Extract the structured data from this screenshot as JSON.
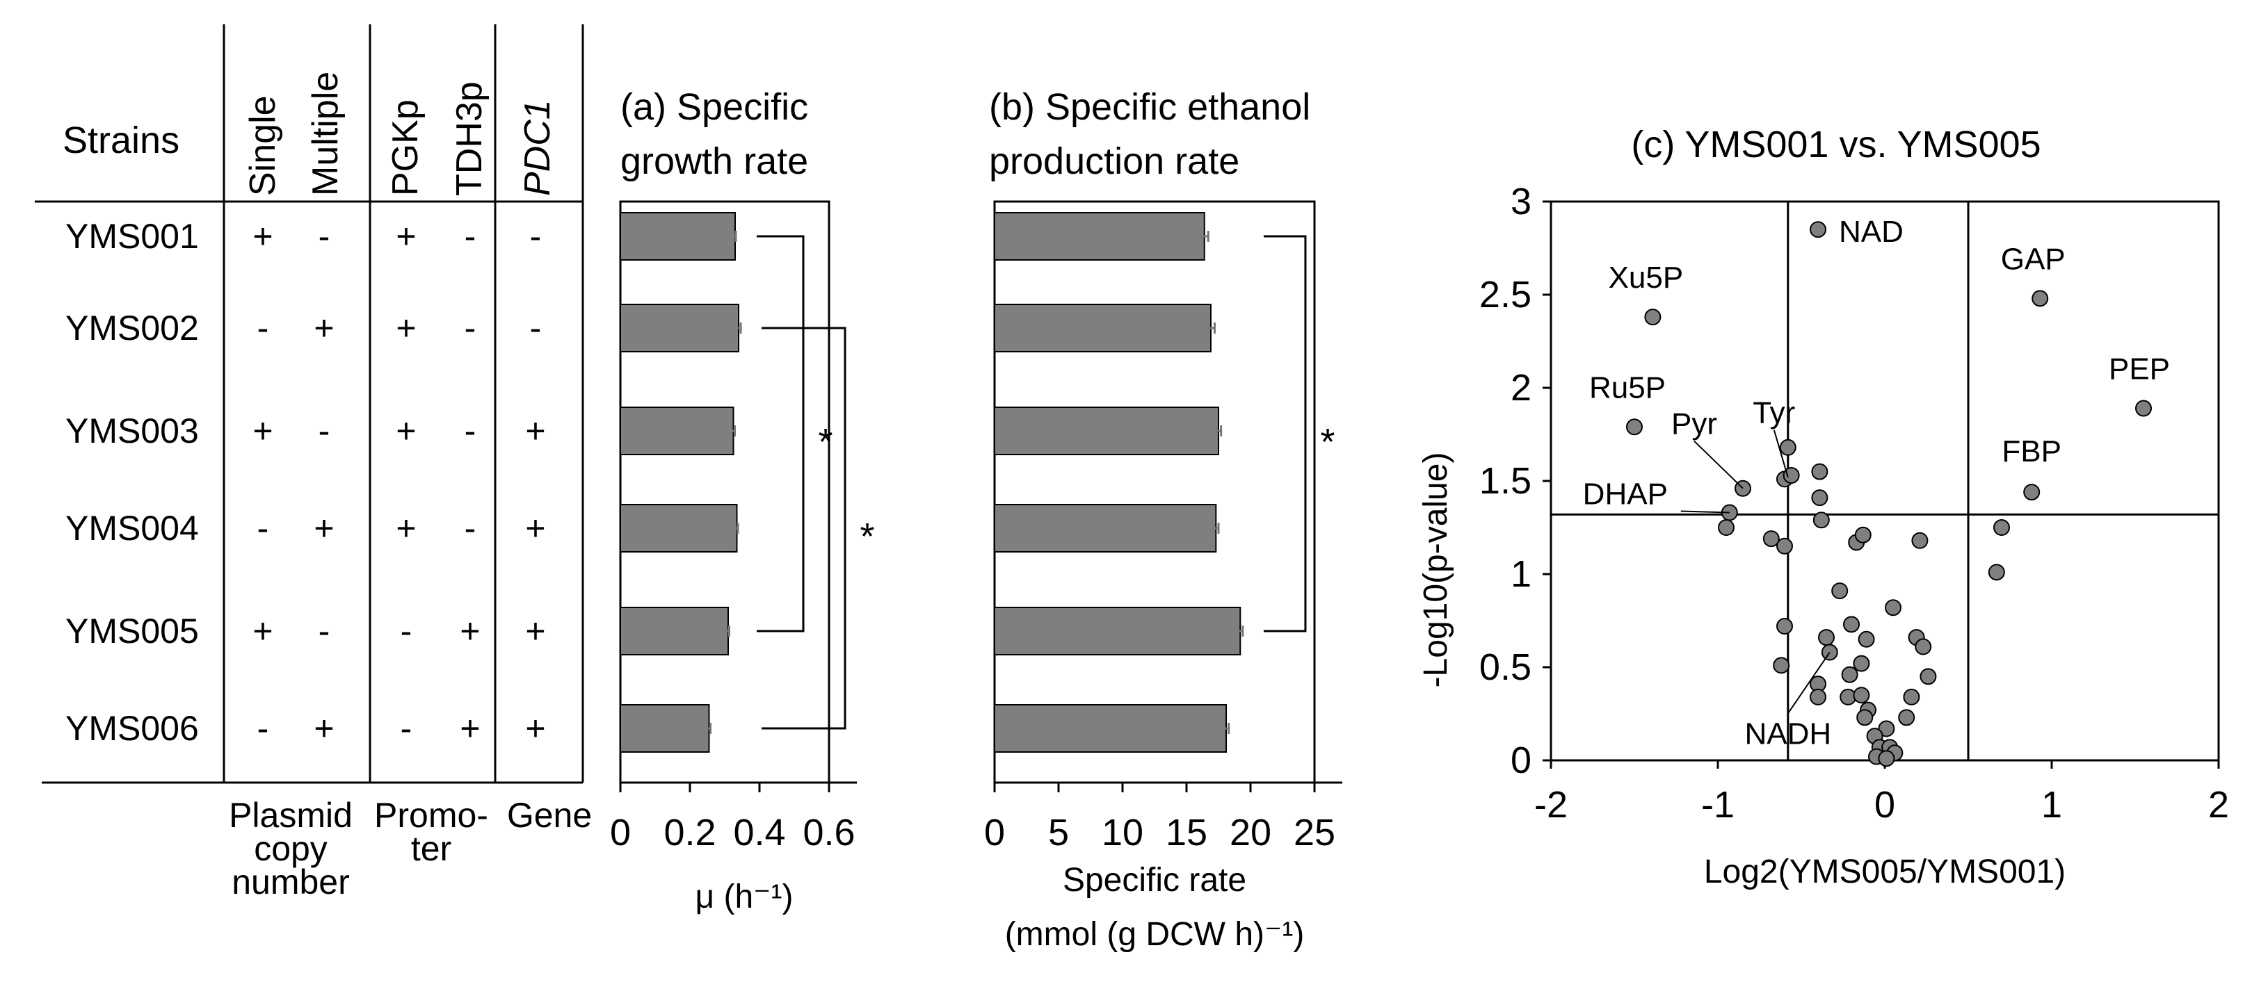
{
  "table": {
    "header": "Strains",
    "col_headers": [
      "Single",
      "Multiple",
      "PGKp",
      "TDH3p",
      "PDC1"
    ],
    "rows": [
      {
        "strain": "YMS001",
        "marks": [
          "+",
          "-",
          "+",
          "-",
          "-"
        ]
      },
      {
        "strain": "YMS002",
        "marks": [
          "-",
          "+",
          "+",
          "-",
          "-"
        ]
      },
      {
        "strain": "YMS003",
        "marks": [
          "+",
          "-",
          "+",
          "-",
          "+"
        ]
      },
      {
        "strain": "YMS004",
        "marks": [
          "-",
          "+",
          "+",
          "-",
          "+"
        ]
      },
      {
        "strain": "YMS005",
        "marks": [
          "+",
          "-",
          "-",
          "+",
          "+"
        ]
      },
      {
        "strain": "YMS006",
        "marks": [
          "-",
          "+",
          "-",
          "+",
          "+"
        ]
      }
    ],
    "groups": {
      "plasmid": [
        "Plasmid",
        "copy",
        "number"
      ],
      "promoter": [
        "Promo-",
        "ter"
      ],
      "gene": "Gene"
    }
  },
  "chart_data": [
    {
      "type": "bar",
      "orientation": "horizontal",
      "title_lines": [
        "(a) Specific",
        "growth rate"
      ],
      "categories": [
        "YMS001",
        "YMS002",
        "YMS003",
        "YMS004",
        "YMS005",
        "YMS006"
      ],
      "values": [
        0.33,
        0.34,
        0.325,
        0.335,
        0.31,
        0.255
      ],
      "errors": [
        0.002,
        0.006,
        0.004,
        0.003,
        0.003,
        0.004
      ],
      "xlim": [
        0,
        0.6
      ],
      "xticks": [
        "0",
        "0.2",
        "0.4",
        "0.6"
      ],
      "xlabel": "μ  (h⁻¹)",
      "significance": [
        {
          "from": "YMS001",
          "to": "YMS005",
          "label": "*"
        },
        {
          "from": "YMS002",
          "to": "YMS006",
          "label": "*"
        }
      ],
      "bar_color": "#7f7f7f"
    },
    {
      "type": "bar",
      "orientation": "horizontal",
      "title_lines": [
        "(b) Specific ethanol",
        "production rate"
      ],
      "categories": [
        "YMS001",
        "YMS002",
        "YMS003",
        "YMS004",
        "YMS005",
        "YMS006"
      ],
      "values": [
        16.4,
        16.9,
        17.5,
        17.3,
        19.2,
        18.1
      ],
      "errors": [
        0.3,
        0.3,
        0.2,
        0.2,
        0.2,
        0.2
      ],
      "xlim": [
        0,
        25
      ],
      "xticks": [
        "0",
        "5",
        "10",
        "15",
        "20",
        "25"
      ],
      "xlabel_lines": [
        "Specific rate",
        "(mmol (g DCW h)⁻¹)"
      ],
      "significance": [
        {
          "from": "YMS001",
          "to": "YMS005",
          "label": "*"
        }
      ],
      "bar_color": "#7f7f7f"
    },
    {
      "type": "scatter",
      "title": "(c) YMS001 vs. YMS005",
      "xlabel": "Log2(YMS005/YMS001)",
      "ylabel": "-Log10(p-value)",
      "xlim": [
        -2,
        2
      ],
      "ylim": [
        0,
        3
      ],
      "xticks": [
        "-2",
        "-1",
        "0",
        "1",
        "2"
      ],
      "yticks": [
        "0",
        "0.5",
        "1",
        "1.5",
        "2",
        "2.5",
        "3"
      ],
      "threshold_x": [
        -0.58,
        0.5
      ],
      "threshold_y": 1.32,
      "labeled_points": [
        {
          "label": "NAD",
          "x": -0.4,
          "y": 2.85
        },
        {
          "label": "Xu5P",
          "x": -1.39,
          "y": 2.38
        },
        {
          "label": "GAP",
          "x": 0.93,
          "y": 2.48
        },
        {
          "label": "PEP",
          "x": 1.55,
          "y": 1.89
        },
        {
          "label": "Ru5P",
          "x": -1.5,
          "y": 1.79
        },
        {
          "label": "Tyr",
          "x": -0.58,
          "y": 1.52
        },
        {
          "label": "Pyr",
          "x": -0.85,
          "y": 1.46
        },
        {
          "label": "DHAP",
          "x": -0.93,
          "y": 1.33
        },
        {
          "label": "FBP",
          "x": 0.88,
          "y": 1.44
        },
        {
          "label": "NADH",
          "x": -0.33,
          "y": 0.58
        }
      ],
      "points": [
        {
          "x": -0.4,
          "y": 2.85
        },
        {
          "x": -1.39,
          "y": 2.38
        },
        {
          "x": 0.93,
          "y": 2.48
        },
        {
          "x": 1.55,
          "y": 1.89
        },
        {
          "x": -1.5,
          "y": 1.79
        },
        {
          "x": -0.85,
          "y": 1.46
        },
        {
          "x": -0.93,
          "y": 1.33
        },
        {
          "x": -0.95,
          "y": 1.25
        },
        {
          "x": 0.88,
          "y": 1.44
        },
        {
          "x": -0.58,
          "y": 1.68
        },
        {
          "x": -0.6,
          "y": 1.51
        },
        {
          "x": -0.56,
          "y": 1.53
        },
        {
          "x": -0.39,
          "y": 1.55
        },
        {
          "x": -0.39,
          "y": 1.41
        },
        {
          "x": -0.38,
          "y": 1.29
        },
        {
          "x": -0.68,
          "y": 1.19
        },
        {
          "x": -0.6,
          "y": 1.15
        },
        {
          "x": -0.17,
          "y": 1.17
        },
        {
          "x": -0.13,
          "y": 1.21
        },
        {
          "x": 0.21,
          "y": 1.18
        },
        {
          "x": 0.7,
          "y": 1.25
        },
        {
          "x": 0.67,
          "y": 1.01
        },
        {
          "x": -0.27,
          "y": 0.91
        },
        {
          "x": 0.05,
          "y": 0.82
        },
        {
          "x": -0.6,
          "y": 0.72
        },
        {
          "x": -0.35,
          "y": 0.66
        },
        {
          "x": -0.2,
          "y": 0.73
        },
        {
          "x": -0.11,
          "y": 0.65
        },
        {
          "x": 0.19,
          "y": 0.66
        },
        {
          "x": 0.23,
          "y": 0.61
        },
        {
          "x": -0.62,
          "y": 0.51
        },
        {
          "x": -0.33,
          "y": 0.58
        },
        {
          "x": -0.4,
          "y": 0.41
        },
        {
          "x": -0.21,
          "y": 0.46
        },
        {
          "x": -0.14,
          "y": 0.52
        },
        {
          "x": 0.26,
          "y": 0.45
        },
        {
          "x": -0.4,
          "y": 0.34
        },
        {
          "x": -0.22,
          "y": 0.34
        },
        {
          "x": -0.14,
          "y": 0.35
        },
        {
          "x": -0.1,
          "y": 0.27
        },
        {
          "x": -0.12,
          "y": 0.23
        },
        {
          "x": 0.16,
          "y": 0.34
        },
        {
          "x": 0.13,
          "y": 0.23
        },
        {
          "x": 0.01,
          "y": 0.17
        },
        {
          "x": -0.06,
          "y": 0.13
        },
        {
          "x": -0.03,
          "y": 0.07
        },
        {
          "x": 0.03,
          "y": 0.07
        },
        {
          "x": 0.06,
          "y": 0.04
        },
        {
          "x": -0.05,
          "y": 0.02
        },
        {
          "x": 0.01,
          "y": 0.01
        }
      ],
      "point_color": "#808080"
    }
  ]
}
